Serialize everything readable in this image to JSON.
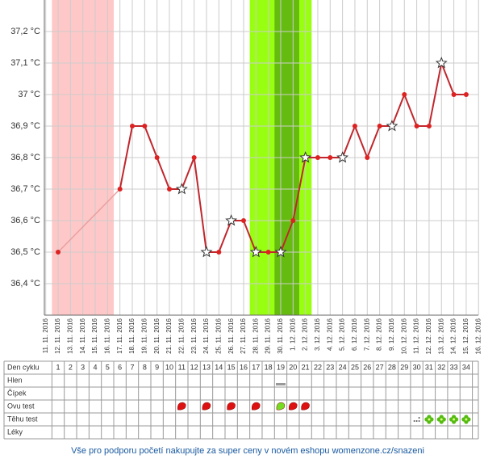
{
  "chart_data": {
    "type": "line",
    "x": [
      "11. 11. 2016",
      "12. 11. 2016",
      "13. 11. 2016",
      "14. 11. 2016",
      "15. 11. 2016",
      "16. 11. 2016",
      "17. 11. 2016",
      "18. 11. 2016",
      "19. 11. 2016",
      "20. 11. 2016",
      "21. 11. 2016",
      "22. 11. 2016",
      "23. 11. 2016",
      "24. 11. 2016",
      "25. 11. 2016",
      "26. 11. 2016",
      "27. 11. 2016",
      "28. 11. 2016",
      "29. 11. 2016",
      "30. 11. 2016",
      "1. 12. 2016",
      "2. 12. 2016",
      "3. 12. 2016",
      "4. 12. 2016",
      "5. 12. 2016",
      "6. 12. 2016",
      "7. 12. 2016",
      "8. 12. 2016",
      "9. 12. 2016",
      "10. 12. 2016",
      "11. 12. 2016",
      "12. 12. 2016",
      "13. 12. 2016",
      "14. 12. 2016",
      "15. 12. 2016",
      "16. 12. 2016"
    ],
    "series": [
      {
        "color": "#c0272d",
        "values": [
          null,
          36.5,
          null,
          null,
          null,
          null,
          36.7,
          36.9,
          36.9,
          36.8,
          36.7,
          36.7,
          36.8,
          36.5,
          36.5,
          36.6,
          36.6,
          36.5,
          36.5,
          36.5,
          36.6,
          36.8,
          36.8,
          36.8,
          36.8,
          36.9,
          36.8,
          36.9,
          36.9,
          37.0,
          36.9,
          36.9,
          37.1,
          37.0,
          37.0,
          null
        ]
      }
    ],
    "star_days": [
      11,
      13,
      15,
      17,
      19,
      21,
      24,
      28,
      32
    ],
    "zones": [
      {
        "start": 1,
        "end": 5,
        "color": "#ffc8c8"
      },
      {
        "start": 17,
        "end": 21,
        "color": "#99ff11"
      },
      {
        "start": 19,
        "end": 20,
        "color": "#66bb11"
      }
    ],
    "ylim": [
      36.3,
      37.3
    ],
    "yticks": [
      {
        "value": 36.4,
        "label": "36,4 °C"
      },
      {
        "value": 36.5,
        "label": "36,5 °C"
      },
      {
        "value": 36.6,
        "label": "36,6 °C"
      },
      {
        "value": 36.7,
        "label": "36,7 °C"
      },
      {
        "value": 36.8,
        "label": "36,8 °C"
      },
      {
        "value": 36.9,
        "label": "36,9 °C"
      },
      {
        "value": 37.0,
        "label": "37 °C"
      },
      {
        "value": 37.1,
        "label": "37,1 °C"
      },
      {
        "value": 37.2,
        "label": "37,2 °C"
      }
    ],
    "grid": true
  },
  "table": {
    "row_labels": [
      "Den cyklu",
      "Hlen",
      "Čípek",
      "Ovu test",
      "Těhu test",
      "Léky"
    ],
    "cycle_days": [
      1,
      2,
      3,
      4,
      5,
      6,
      7,
      8,
      9,
      10,
      11,
      12,
      13,
      14,
      15,
      16,
      17,
      18,
      19,
      20,
      21,
      22,
      23,
      24,
      25,
      26,
      27,
      28,
      29,
      30,
      31,
      32,
      33,
      34
    ],
    "hlen_days": [
      19
    ],
    "ovu_positive_days": [
      11,
      13,
      15,
      17,
      20,
      21
    ],
    "ovu_green_days": [
      19
    ],
    "tehu_dots_days": [
      30
    ],
    "tehu_flower_days": [
      31,
      32,
      33,
      34
    ]
  },
  "footer": "Vše pro podporu početí nakupujte za super ceny v novém eshopu womenzone.cz/snazeni"
}
